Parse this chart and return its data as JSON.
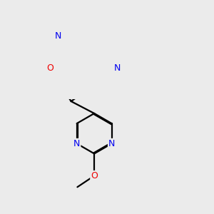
{
  "background_color": "#ebebeb",
  "line_color": "#000000",
  "bond_width": 1.6,
  "atom_colors": {
    "N": "#0000ee",
    "O": "#ee0000",
    "C": "#000000"
  },
  "font_size_atom": 9,
  "figsize": [
    3.0,
    3.0
  ],
  "dpi": 100
}
